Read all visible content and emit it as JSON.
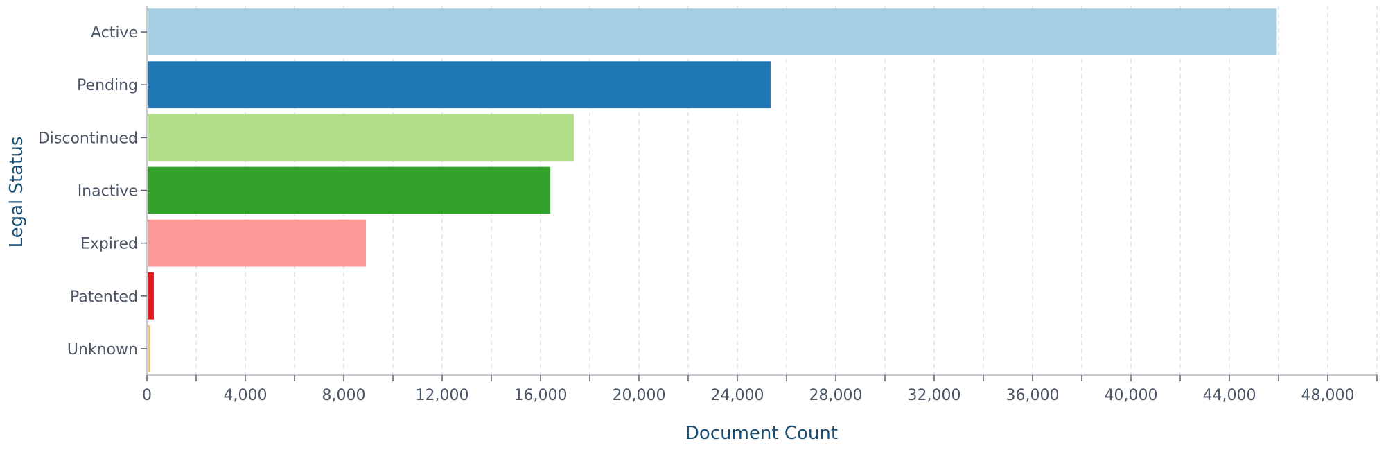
{
  "chart_data": {
    "type": "bar",
    "orientation": "horizontal",
    "xlabel": "Document Count",
    "ylabel": "Legal Status",
    "xlim": [
      0,
      50000
    ],
    "xticks": [
      0,
      4000,
      8000,
      12000,
      16000,
      20000,
      24000,
      28000,
      32000,
      36000,
      40000,
      44000,
      48000
    ],
    "xtick_labels": [
      "0",
      "4,000",
      "8,000",
      "12,000",
      "16,000",
      "20,000",
      "24,000",
      "28,000",
      "32,000",
      "36,000",
      "40,000",
      "44,000",
      "48,000"
    ],
    "grid": true,
    "categories": [
      "Active",
      "Pending",
      "Discontinued",
      "Inactive",
      "Expired",
      "Patented",
      "Unknown"
    ],
    "values": [
      45900,
      25350,
      17350,
      16400,
      8900,
      280,
      120
    ],
    "colors": [
      "#a6cee3",
      "#1f78b4",
      "#b2df8a",
      "#33a02c",
      "#fb9a99",
      "#e31a1c",
      "#fdbf6f"
    ]
  }
}
